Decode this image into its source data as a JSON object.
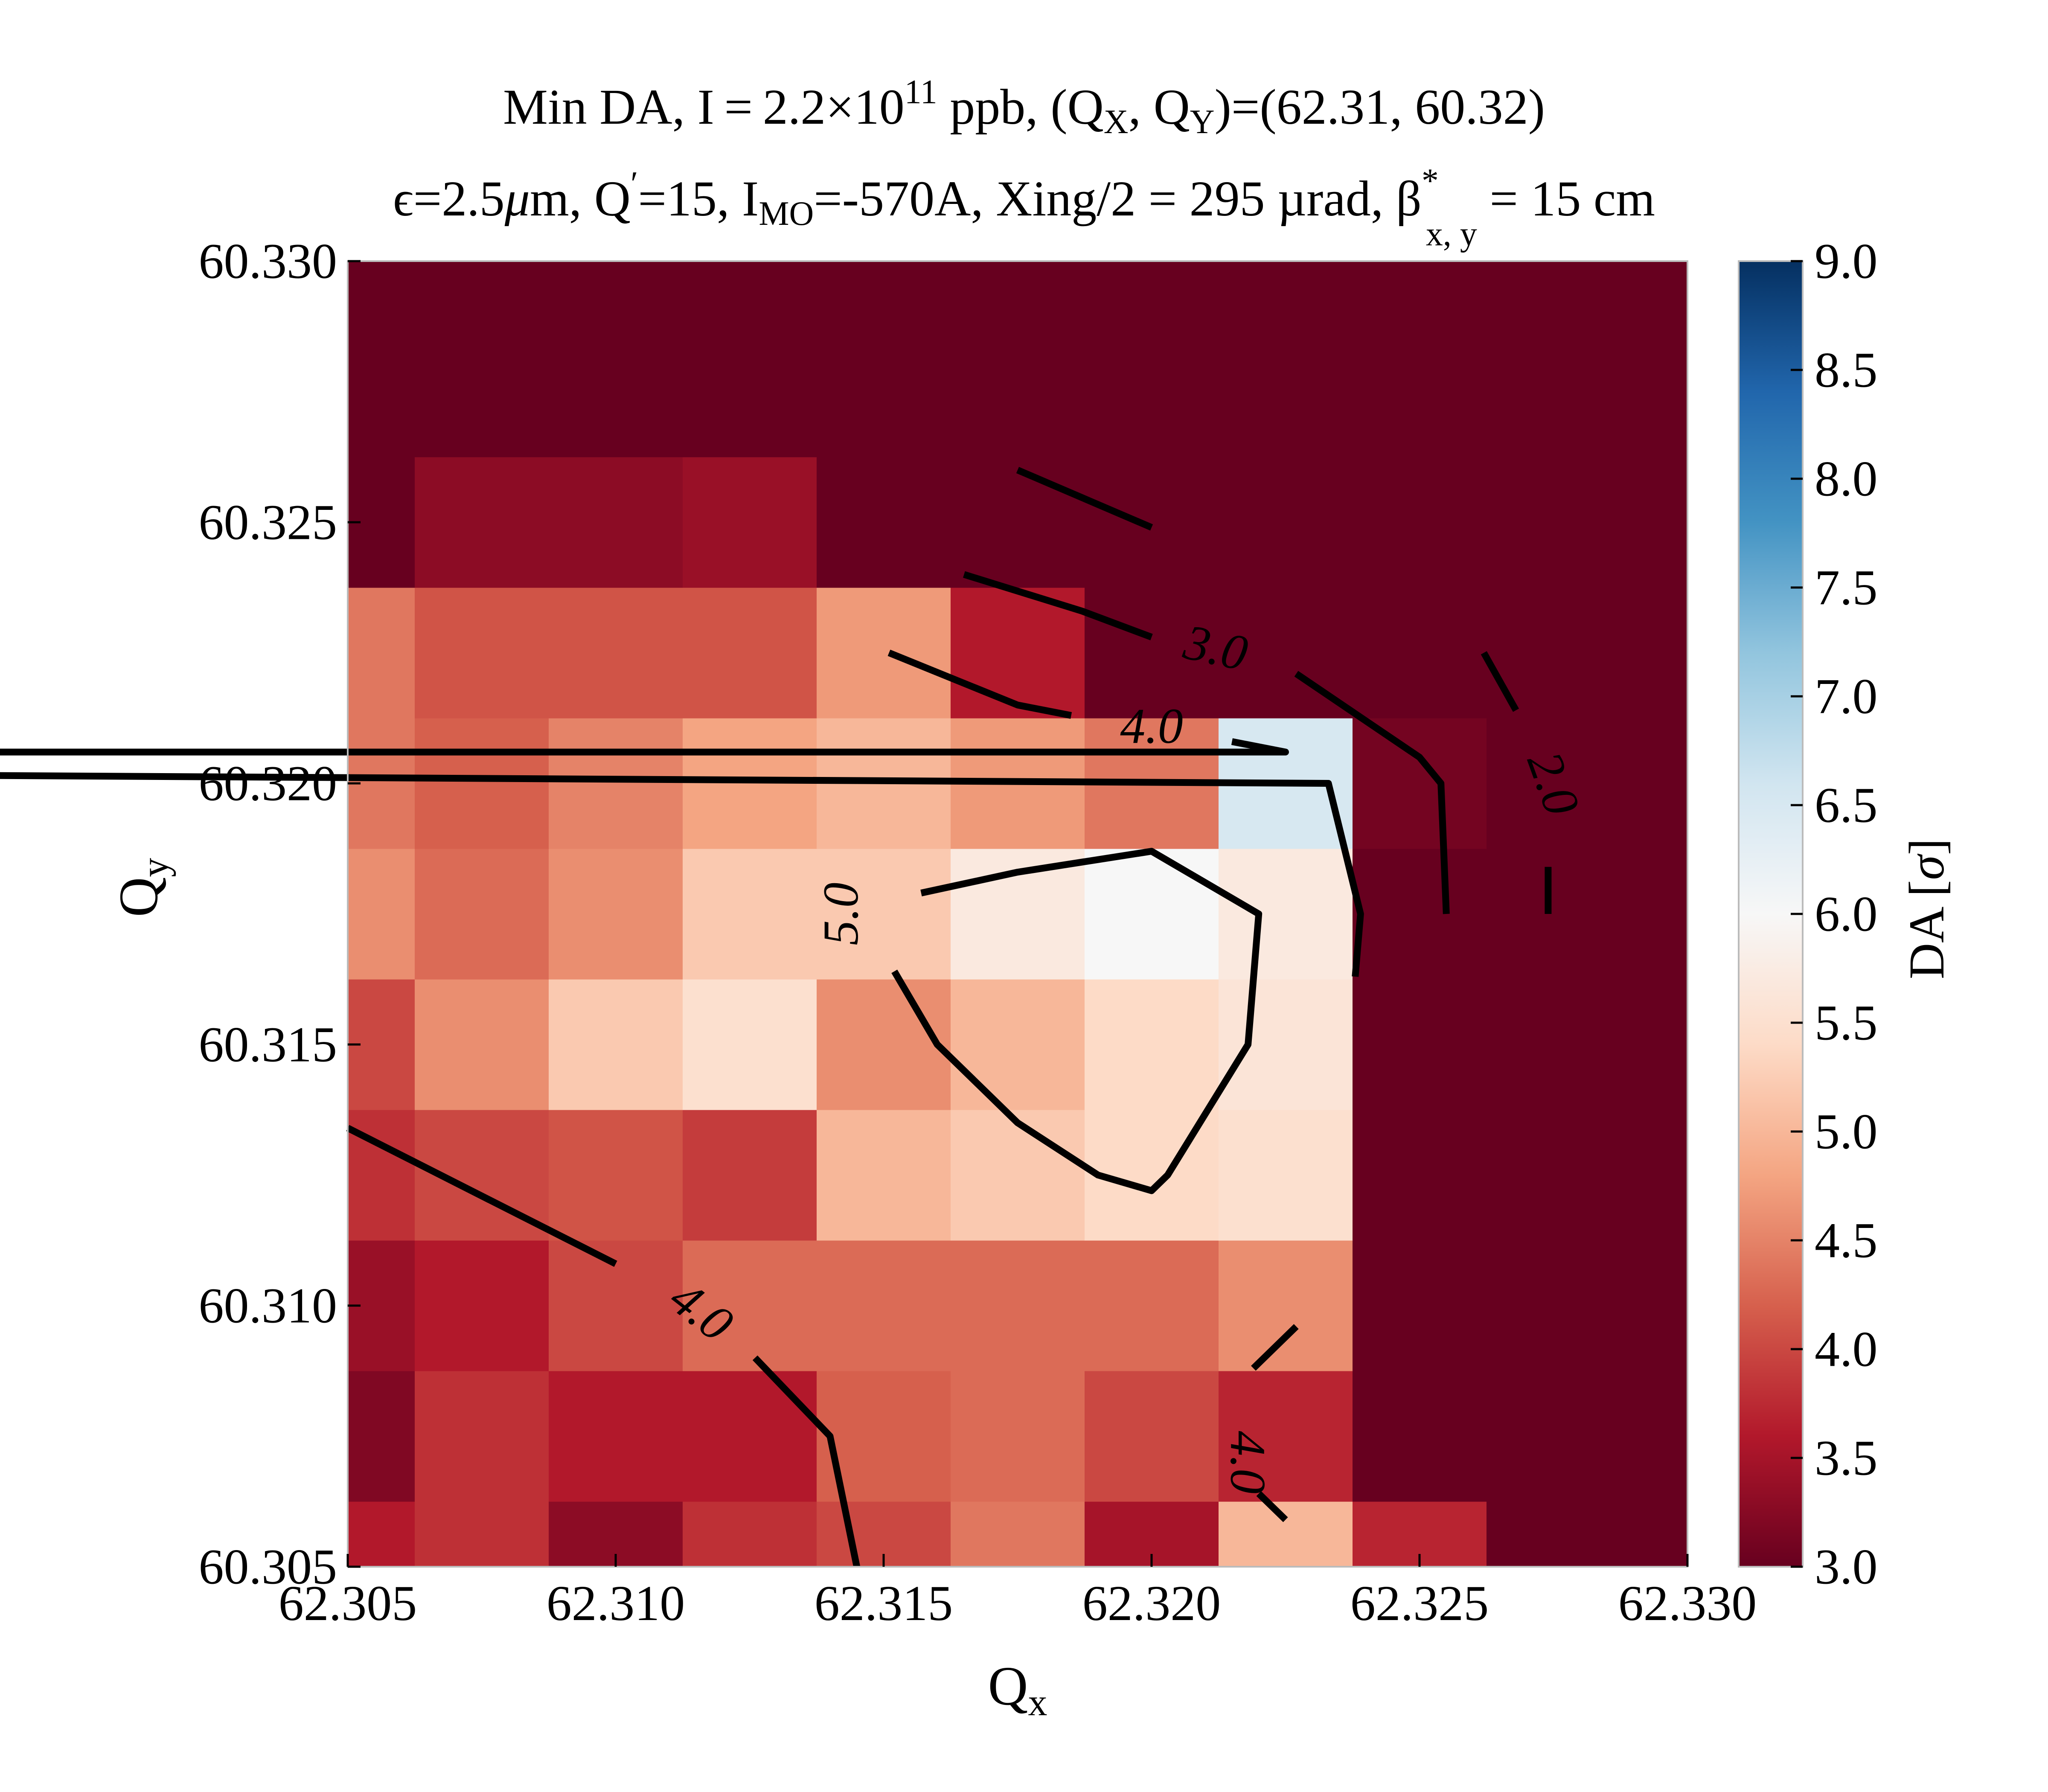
{
  "chart_data": {
    "type": "heatmap",
    "title_line1": {
      "prefix": "Min DA, I = 2.2×10",
      "sup": "11",
      "suffix": " ppb, (Q",
      "sub1": "X",
      "mid": ", Q",
      "sub2": "Y",
      "end": ")=(62.31, 60.32)"
    },
    "title_line2": {
      "eps": "ϵ=2.5",
      "mu": "μ",
      "p1": "m, Q",
      "sup1": "′",
      "p2": "=15, I",
      "sub1": "MO",
      "p3": "=-570A, Xing/2 = 295 µrad, β",
      "sup2": "*",
      "sub2": "x, y",
      "p4": " = 15 cm"
    },
    "xlabel": {
      "main": "Q",
      "sub": "x"
    },
    "ylabel": {
      "main": "Q",
      "sub": "y"
    },
    "colorbar_label": {
      "main": "DA [",
      "sym": "σ",
      "end": "]"
    },
    "xlim": [
      62.305,
      62.33
    ],
    "ylim": [
      60.305,
      60.33
    ],
    "clim": [
      3.0,
      9.0
    ],
    "colormap": "RdBu",
    "x_ticks": [
      "62.305",
      "62.310",
      "62.315",
      "62.320",
      "62.325",
      "62.330"
    ],
    "y_ticks": [
      "60.305",
      "60.310",
      "60.315",
      "60.320",
      "60.325",
      "60.330"
    ],
    "colorbar_ticks": [
      "3.0",
      "3.5",
      "4.0",
      "4.5",
      "5.0",
      "5.5",
      "6.0",
      "6.5",
      "7.0",
      "7.5",
      "8.0",
      "8.5",
      "9.0"
    ],
    "x_centers": [
      62.305,
      62.3075,
      62.31,
      62.3125,
      62.315,
      62.3175,
      62.32,
      62.3225,
      62.325,
      62.3275,
      62.33
    ],
    "y_centers": [
      60.305,
      60.3075,
      60.31,
      60.3125,
      60.315,
      60.3175,
      60.32,
      60.3225,
      60.325,
      60.3275,
      60.33
    ],
    "values": [
      [
        3.6,
        3.8,
        3.3,
        3.8,
        4.0,
        4.4,
        3.5,
        5.0,
        3.7,
        3.0,
        3.0
      ],
      [
        3.2,
        3.8,
        3.6,
        3.6,
        4.2,
        4.3,
        4.0,
        3.7,
        3.0,
        3.0,
        3.0
      ],
      [
        3.4,
        3.6,
        4.0,
        4.3,
        4.3,
        4.3,
        4.3,
        4.6,
        3.0,
        3.0,
        3.0
      ],
      [
        3.8,
        4.0,
        4.1,
        3.9,
        5.0,
        5.2,
        5.4,
        5.5,
        3.0,
        3.0,
        3.0
      ],
      [
        4.0,
        4.6,
        5.2,
        5.5,
        4.6,
        5.0,
        5.4,
        5.6,
        3.0,
        3.0,
        3.0
      ],
      [
        4.6,
        4.3,
        4.6,
        5.2,
        5.2,
        5.7,
        6.0,
        5.7,
        3.0,
        3.0,
        3.0
      ],
      [
        4.4,
        4.2,
        4.5,
        4.8,
        5.0,
        4.7,
        4.4,
        6.5,
        3.1,
        3.0,
        3.0
      ],
      [
        4.4,
        4.1,
        4.1,
        4.1,
        4.7,
        3.6,
        3.0,
        3.0,
        3.0,
        3.0,
        3.0
      ],
      [
        3.0,
        3.3,
        3.3,
        3.4,
        3.0,
        3.0,
        3.0,
        3.0,
        3.0,
        3.0,
        3.0
      ],
      [
        3.0,
        3.0,
        3.0,
        3.0,
        3.0,
        3.0,
        3.0,
        3.0,
        3.0,
        3.0,
        3.0
      ],
      [
        3.0,
        3.0,
        3.0,
        3.0,
        3.0,
        3.0,
        3.0,
        3.0,
        3.0,
        3.0,
        3.0
      ]
    ],
    "contours": [
      {
        "label": "5.0",
        "label_at": [
          62.3142,
          60.3175
        ],
        "label_rotation": -90,
        "segments": [
          [
            [
              62.3157,
              60.3179
            ],
            [
              62.3175,
              60.3183
            ],
            [
              62.32,
              60.3187
            ],
            [
              62.322,
              60.3175
            ],
            [
              62.3218,
              60.315
            ],
            [
              62.3203,
              60.3125
            ],
            [
              62.32,
              60.3122
            ],
            [
              62.319,
              60.3125
            ],
            [
              62.3175,
              60.3135
            ],
            [
              62.316,
              60.315
            ],
            [
              62.3152,
              60.3164
            ]
          ]
        ]
      },
      {
        "label": "4.0",
        "label_at": [
          62.32,
          60.3211
        ],
        "label_rotation": 0,
        "segments": [
          [
            [
              62.3151,
              60.3225
            ],
            [
              62.3175,
              60.3215
            ],
            [
              62.3185,
              60.3213
            ]
          ],
          [
            [
              62.3215,
              60.3208
            ],
            [
              62.3225,
              60.3206
            ],
            [
              62.2233,
              60.3206
            ],
            [
              62.3233,
              60.32
            ],
            [
              62.3239,
              60.3175
            ],
            [
              62.3238,
              60.3163
            ]
          ]
        ]
      },
      {
        "label": "4.0",
        "label_at": [
          62.3116,
          60.3099
        ],
        "label_rotation": 38,
        "segments": [
          [
            [
              62.305,
              60.3134
            ],
            [
              62.3075,
              60.3121
            ],
            [
              62.31,
              60.3108
            ]
          ],
          [
            [
              62.3126,
              60.309
            ],
            [
              62.314,
              60.3075
            ],
            [
              62.3145,
              60.305
            ]
          ]
        ]
      },
      {
        "label": "4.0",
        "label_at": [
          62.3218,
          60.307
        ],
        "label_rotation": 90,
        "segments": [
          [
            [
              62.3227,
              60.3096
            ],
            [
              62.3219,
              60.3088
            ]
          ],
          [
            [
              62.322,
              60.3064
            ],
            [
              62.3225,
              60.3059
            ]
          ]
        ]
      },
      {
        "label": "3.0",
        "label_at": [
          62.3212,
          60.3226
        ],
        "label_rotation": 12,
        "segments": [
          [
            [
              62.3175,
              60.326
            ],
            [
              62.32,
              60.3249
            ]
          ],
          [
            [
              62.3165,
              60.324
            ],
            [
              62.3187,
              60.3233
            ],
            [
              62.32,
              60.3228
            ]
          ],
          [
            [
              62.3227,
              60.3221
            ],
            [
              62.325,
              60.3205
            ],
            [
              62.3254,
              60.32
            ],
            [
              62.3255,
              60.3175
            ]
          ]
        ]
      },
      {
        "label": "2.0",
        "label_at": [
          62.3275,
          60.32
        ],
        "label_rotation": 70,
        "segments": [
          [
            [
              62.3262,
              60.3225
            ],
            [
              62.3268,
              60.3214
            ]
          ],
          [
            [
              62.3274,
              60.3184
            ],
            [
              62.3274,
              60.3175
            ]
          ]
        ]
      }
    ]
  }
}
